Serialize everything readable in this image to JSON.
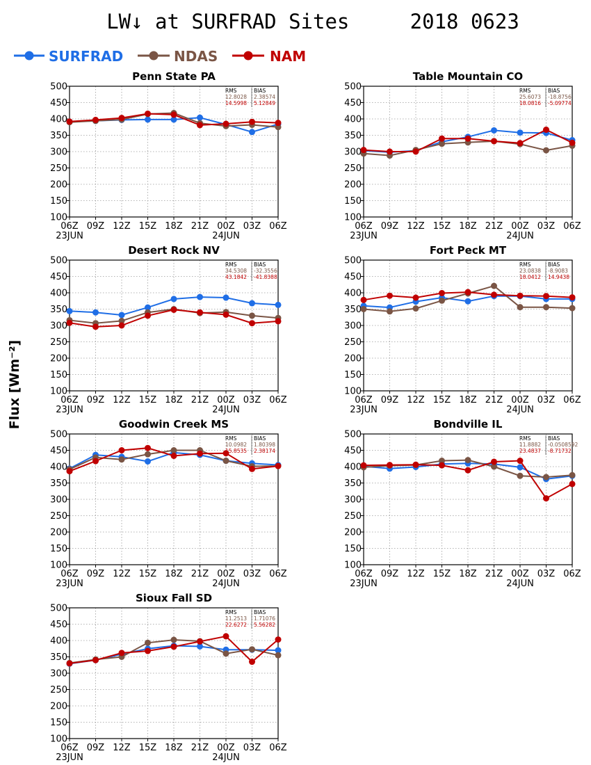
{
  "title": "LW↓ at SURFRAD Sites     2018 0623",
  "ylabel": "Flux [Wm⁻²]",
  "legend": [
    {
      "name": "SURFRAD",
      "color": "#1f6ee6"
    },
    {
      "name": "NDAS",
      "color": "#7a5545"
    },
    {
      "name": "NAM",
      "color": "#c00000"
    }
  ],
  "colors": {
    "SURFRAD": "#1f6ee6",
    "NDAS": "#7a5545",
    "NAM": "#c00000",
    "stat_header": "#000000"
  },
  "chart_data": [
    {
      "type": "line",
      "title": "Penn State PA",
      "x": [
        "06Z",
        "09Z",
        "12Z",
        "15Z",
        "18Z",
        "21Z",
        "00Z",
        "03Z",
        "06Z"
      ],
      "dates": [
        "23JUN",
        "24JUN"
      ],
      "ylim": [
        100,
        500
      ],
      "yticks": [
        100,
        150,
        200,
        250,
        300,
        350,
        400,
        450,
        500
      ],
      "grid": true,
      "stats": {
        "header": [
          "RMS",
          "BIAS"
        ],
        "NDAS": [
          "12.8028",
          "2.38574"
        ],
        "NAM": [
          "14.5998",
          "5.12849"
        ]
      },
      "series": [
        {
          "name": "SURFRAD",
          "values": [
            392,
            394,
            397,
            398,
            398,
            404,
            383,
            360,
            384
          ]
        },
        {
          "name": "NDAS",
          "values": [
            390,
            394,
            398,
            415,
            418,
            387,
            378,
            382,
            375
          ]
        },
        {
          "name": "NAM",
          "values": [
            392,
            397,
            403,
            416,
            413,
            381,
            385,
            391,
            388
          ]
        }
      ]
    },
    {
      "type": "line",
      "title": "Table Mountain CO",
      "x": [
        "06Z",
        "09Z",
        "12Z",
        "15Z",
        "18Z",
        "21Z",
        "00Z",
        "03Z",
        "06Z"
      ],
      "dates": [
        "23JUN",
        "24JUN"
      ],
      "ylim": [
        100,
        500
      ],
      "yticks": [
        100,
        150,
        200,
        250,
        300,
        350,
        400,
        450,
        500
      ],
      "grid": true,
      "stats": {
        "header": [
          "RMS",
          "BIAS"
        ],
        "NDAS": [
          "25.6073",
          "-18.8756"
        ],
        "NAM": [
          "18.0816",
          "-5.09774"
        ]
      },
      "series": [
        {
          "name": "SURFRAD",
          "values": [
            303,
            298,
            303,
            330,
            345,
            365,
            358,
            357,
            335
          ]
        },
        {
          "name": "NDAS",
          "values": [
            294,
            288,
            305,
            324,
            328,
            332,
            323,
            304,
            318
          ]
        },
        {
          "name": "NAM",
          "values": [
            305,
            300,
            300,
            340,
            340,
            332,
            326,
            367,
            327
          ]
        }
      ]
    },
    {
      "type": "line",
      "title": "Desert Rock NV",
      "x": [
        "06Z",
        "09Z",
        "12Z",
        "15Z",
        "18Z",
        "21Z",
        "00Z",
        "03Z",
        "06Z"
      ],
      "dates": [
        "23JUN",
        "24JUN"
      ],
      "ylim": [
        100,
        500
      ],
      "yticks": [
        100,
        150,
        200,
        250,
        300,
        350,
        400,
        450,
        500
      ],
      "grid": true,
      "stats": {
        "header": [
          "RMS",
          "BIAS"
        ],
        "NDAS": [
          "34.5308",
          "-32.3556"
        ],
        "NAM": [
          "43.1842",
          "-41.8388"
        ]
      },
      "series": [
        {
          "name": "SURFRAD",
          "values": [
            344,
            340,
            332,
            355,
            381,
            387,
            385,
            368,
            363
          ]
        },
        {
          "name": "NDAS",
          "values": [
            316,
            307,
            314,
            340,
            350,
            338,
            341,
            330,
            323
          ]
        },
        {
          "name": "NAM",
          "values": [
            308,
            296,
            300,
            330,
            348,
            340,
            333,
            307,
            313
          ]
        }
      ]
    },
    {
      "type": "line",
      "title": "Fort Peck MT",
      "x": [
        "06Z",
        "09Z",
        "12Z",
        "15Z",
        "18Z",
        "21Z",
        "00Z",
        "03Z",
        "06Z"
      ],
      "dates": [
        "23JUN",
        "24JUN"
      ],
      "ylim": [
        100,
        500
      ],
      "yticks": [
        100,
        150,
        200,
        250,
        300,
        350,
        400,
        450,
        500
      ],
      "grid": true,
      "stats": {
        "header": [
          "RMS",
          "BIAS"
        ],
        "NDAS": [
          "23.0838",
          "-8.9083"
        ],
        "NAM": [
          "18.0412",
          "14.9438"
        ]
      },
      "series": [
        {
          "name": "SURFRAD",
          "values": [
            360,
            355,
            373,
            385,
            374,
            390,
            390,
            381,
            381
          ]
        },
        {
          "name": "NDAS",
          "values": [
            350,
            343,
            352,
            376,
            398,
            421,
            356,
            356,
            353
          ]
        },
        {
          "name": "NAM",
          "values": [
            378,
            391,
            385,
            399,
            402,
            394,
            391,
            390,
            386
          ]
        }
      ]
    },
    {
      "type": "line",
      "title": "Goodwin Creek MS",
      "x": [
        "06Z",
        "09Z",
        "12Z",
        "15Z",
        "18Z",
        "21Z",
        "00Z",
        "03Z",
        "06Z"
      ],
      "dates": [
        "23JUN",
        "24JUN"
      ],
      "ylim": [
        100,
        500
      ],
      "yticks": [
        100,
        150,
        200,
        250,
        300,
        350,
        400,
        450,
        500
      ],
      "grid": true,
      "stats": {
        "header": [
          "RMS",
          "BIAS"
        ],
        "NDAS": [
          "10.0982",
          "1.80398"
        ],
        "NAM": [
          "15.8535",
          "2.38174"
        ]
      },
      "series": [
        {
          "name": "SURFRAD",
          "values": [
            394,
            436,
            430,
            416,
            443,
            436,
            418,
            410,
            405
          ]
        },
        {
          "name": "NDAS",
          "values": [
            392,
            428,
            422,
            438,
            450,
            450,
            418,
            401,
            402
          ]
        },
        {
          "name": "NAM",
          "values": [
            386,
            417,
            450,
            457,
            433,
            440,
            441,
            393,
            402
          ]
        }
      ]
    },
    {
      "type": "line",
      "title": "Bondville IL",
      "x": [
        "06Z",
        "09Z",
        "12Z",
        "15Z",
        "18Z",
        "21Z",
        "00Z",
        "03Z",
        "06Z"
      ],
      "dates": [
        "23JUN",
        "24JUN"
      ],
      "ylim": [
        100,
        500
      ],
      "yticks": [
        100,
        150,
        200,
        250,
        300,
        350,
        400,
        450,
        500
      ],
      "grid": true,
      "stats": {
        "header": [
          "RMS",
          "BIAS"
        ],
        "NDAS": [
          "11.8882",
          "-0.0508592"
        ],
        "NAM": [
          "23.4837",
          "-8.71732"
        ]
      },
      "series": [
        {
          "name": "SURFRAD",
          "values": [
            401,
            394,
            399,
            408,
            410,
            408,
            398,
            362,
            372
          ]
        },
        {
          "name": "NDAS",
          "values": [
            398,
            403,
            405,
            418,
            420,
            400,
            372,
            368,
            374
          ]
        },
        {
          "name": "NAM",
          "values": [
            404,
            405,
            406,
            404,
            389,
            415,
            418,
            303,
            347
          ]
        }
      ]
    },
    {
      "type": "line",
      "title": "Sioux Fall SD",
      "x": [
        "06Z",
        "09Z",
        "12Z",
        "15Z",
        "18Z",
        "21Z",
        "00Z",
        "03Z",
        "06Z"
      ],
      "dates": [
        "23JUN",
        "24JUN"
      ],
      "ylim": [
        100,
        500
      ],
      "yticks": [
        100,
        150,
        200,
        250,
        300,
        350,
        400,
        450,
        500
      ],
      "grid": true,
      "stats": {
        "header": [
          "RMS",
          "BIAS"
        ],
        "NDAS": [
          "11.2513",
          "1.71076"
        ],
        "NAM": [
          "22.6272",
          "5.56282"
        ]
      },
      "series": [
        {
          "name": "SURFRAD",
          "values": [
            329,
            340,
            358,
            375,
            384,
            382,
            372,
            372,
            370
          ]
        },
        {
          "name": "NDAS",
          "values": [
            331,
            342,
            350,
            393,
            402,
            398,
            360,
            373,
            355
          ]
        },
        {
          "name": "NAM",
          "values": [
            330,
            340,
            362,
            368,
            381,
            397,
            413,
            335,
            403
          ]
        }
      ]
    }
  ]
}
